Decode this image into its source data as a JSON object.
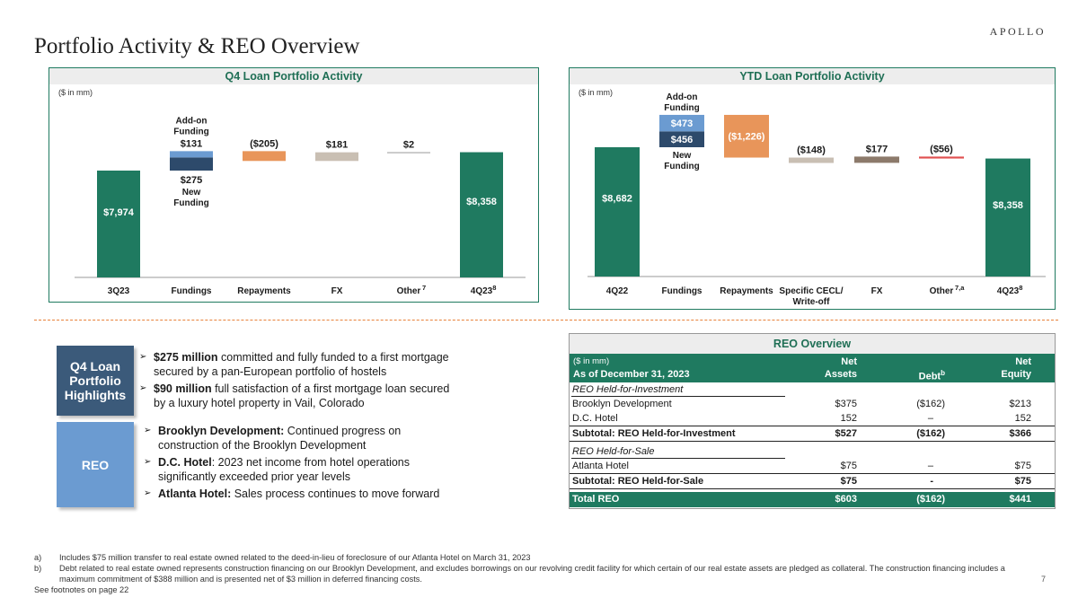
{
  "header": {
    "brand": "APOLLO",
    "title": "Portfolio Activity & REO Overview"
  },
  "chart_data": [
    {
      "type": "waterfall",
      "title": "Q4 Loan Portfolio Activity",
      "unit_note": "($ in mm)",
      "categories": [
        "3Q23",
        "Fundings",
        "Repayments",
        "FX",
        "Other",
        "4Q23"
      ],
      "category_superscripts": [
        "",
        "",
        "",
        "",
        "7",
        "8"
      ],
      "values": [
        7974,
        406,
        -205,
        181,
        2,
        8358
      ],
      "value_labels": [
        "$7,974",
        "",
        "($205)",
        "$181",
        "$2",
        "$8,358"
      ],
      "fundings_breakdown": [
        {
          "name": "New Funding",
          "value": 275,
          "label": "$275"
        },
        {
          "name": "Add-on Funding",
          "value": 131,
          "label": "$131"
        }
      ],
      "series_colors": {
        "total": "#1f7a60",
        "new_funding": "#2d4a6b",
        "addon_funding": "#6b9bd1",
        "repayments": "#e8955a",
        "fx": "#c9bfb3",
        "other": "#9a9a9a"
      }
    },
    {
      "type": "waterfall",
      "title": "YTD Loan Portfolio Activity",
      "unit_note": "($ in mm)",
      "categories": [
        "4Q22",
        "Fundings",
        "Repayments",
        "Specific CECL/ Write-off",
        "FX",
        "Other",
        "4Q23"
      ],
      "category_superscripts": [
        "",
        "",
        "",
        "",
        "",
        "7,a",
        "8"
      ],
      "values": [
        8682,
        929,
        -1226,
        -148,
        177,
        -56,
        8358
      ],
      "value_labels": [
        "$8,682",
        "",
        "($1,226)",
        "($148)",
        "$177",
        "($56)",
        "$8,358"
      ],
      "fundings_breakdown": [
        {
          "name": "New Funding",
          "value": 456,
          "label": "$456"
        },
        {
          "name": "Add-on Funding",
          "value": 473,
          "label": "$473"
        }
      ],
      "series_colors": {
        "total": "#1f7a60",
        "new_funding": "#2d4a6b",
        "addon_funding": "#6b9bd1",
        "repayments": "#e8955a",
        "cecl": "#c9bfb3",
        "fx": "#8c7a6b",
        "other": "#e05050"
      }
    }
  ],
  "chart_labels": {
    "addon_funding": [
      "Add-on",
      "Funding"
    ],
    "new_funding": [
      "New",
      "Funding"
    ],
    "specific_cecl": [
      "Specific CECL/",
      "Write-off"
    ]
  },
  "highlights": {
    "q4_label": "Q4 Loan Portfolio Highlights",
    "items": [
      {
        "bold": "$275 million",
        "text": " committed and fully funded to a first mortgage secured by a pan-European portfolio of hostels"
      },
      {
        "bold": "$90 million",
        "text": " full satisfaction of a first mortgage loan secured by a luxury hotel property in Vail, Colorado"
      }
    ],
    "reo_label": "REO",
    "reo_items": [
      {
        "bold": "Brooklyn Development:",
        "text": " Continued progress on construction of the Brooklyn Development"
      },
      {
        "bold": "D.C. Hotel",
        "text": ": 2023 net income from hotel operations significantly exceeded prior year levels"
      },
      {
        "bold": "Atlanta Hotel:",
        "text": " Sales process continues to move forward"
      }
    ]
  },
  "reo_table": {
    "title": "REO Overview",
    "unit_note": "($ in mm)",
    "as_of": "As of December 31, 2023",
    "columns": {
      "net_assets_1": "Net",
      "net_assets_2": "Assets",
      "debt": "Debt",
      "debt_sup": "b",
      "net_equity_1": "Net",
      "net_equity_2": "Equity"
    },
    "sections": {
      "hfi_label": "REO Held-for-Investment",
      "brooklyn": {
        "name": "Brooklyn Development",
        "assets": "$375",
        "debt": "($162)",
        "equity": "$213"
      },
      "dc": {
        "name": "D.C. Hotel",
        "assets": "152",
        "debt": "–",
        "equity": "152"
      },
      "hfi_subtotal": {
        "name": "Subtotal: REO Held-for-Investment",
        "assets": "$527",
        "debt": "($162)",
        "equity": "$366"
      },
      "hfs_label": "REO Held-for-Sale",
      "atlanta": {
        "name": "Atlanta Hotel",
        "assets": "$75",
        "debt": "–",
        "equity": "$75"
      },
      "hfs_subtotal": {
        "name": "Subtotal: REO Held-for-Sale",
        "assets": "$75",
        "debt": "-",
        "equity": "$75"
      },
      "total": {
        "name": "Total REO",
        "assets": "$603",
        "debt": "($162)",
        "equity": "$441"
      }
    }
  },
  "footnotes": {
    "a_label": "a)",
    "a": "Includes $75 million transfer to real estate owned related to the deed-in-lieu of foreclosure of our Atlanta Hotel on March 31, 2023",
    "b_label": "b)",
    "b": "Debt related to real estate owned represents construction financing on our Brooklyn Development, and excludes borrowings on our revolving credit facility for which certain of our real estate assets are pledged as collateral. The construction financing includes a maximum commitment of $388 million and is presented net of $3 million in deferred financing costs.",
    "see": "See footnotes on page 22"
  },
  "page_number": "7"
}
